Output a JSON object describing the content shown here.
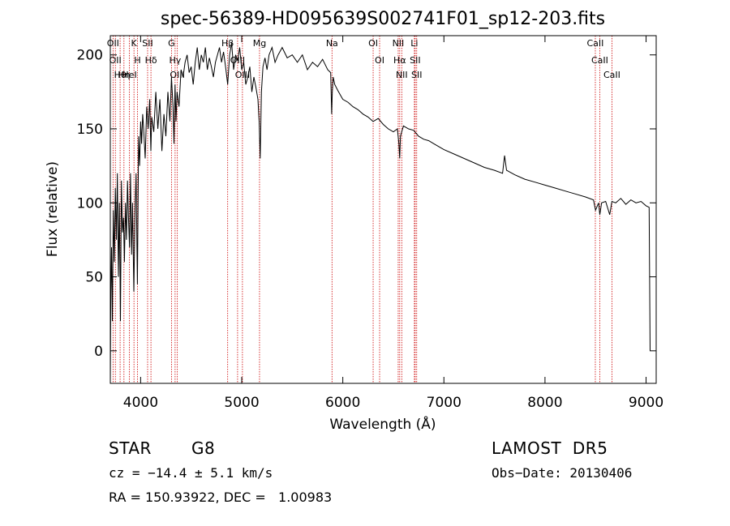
{
  "chart_data": {
    "type": "line",
    "title": "spec-56389-HD095639S002741F01_sp12-203.fits",
    "xlabel": "Wavelength (Å)",
    "ylabel": "Flux (relative)",
    "xlim": [
      3700,
      9100
    ],
    "ylim": [
      -22,
      213
    ],
    "xticks": [
      4000,
      5000,
      6000,
      7000,
      8000,
      9000
    ],
    "yticks": [
      0,
      50,
      100,
      150,
      200
    ],
    "grid": false,
    "line_color": "#000000",
    "marker_color": "#cc0000",
    "series": [
      {
        "x": [
          3700,
          3705,
          3712,
          3720,
          3730,
          3740,
          3750,
          3760,
          3770,
          3780,
          3790,
          3800,
          3810,
          3820,
          3830,
          3840,
          3850,
          3860,
          3870,
          3880,
          3890,
          3900,
          3910,
          3920,
          3933,
          3945,
          3955,
          3968,
          3980,
          3990,
          4000,
          4010,
          4020,
          4030,
          4045,
          4060,
          4075,
          4090,
          4101,
          4110,
          4130,
          4150,
          4170,
          4190,
          4210,
          4230,
          4250,
          4270,
          4290,
          4305,
          4320,
          4330,
          4340,
          4350,
          4360,
          4380,
          4400,
          4420,
          4440,
          4460,
          4480,
          4500,
          4520,
          4540,
          4560,
          4580,
          4600,
          4620,
          4640,
          4660,
          4680,
          4700,
          4720,
          4740,
          4760,
          4780,
          4800,
          4820,
          4840,
          4861,
          4880,
          4900,
          4920,
          4940,
          4960,
          4980,
          5000,
          5020,
          5040,
          5060,
          5080,
          5100,
          5120,
          5140,
          5160,
          5172,
          5183,
          5195,
          5210,
          5230,
          5250,
          5270,
          5300,
          5330,
          5360,
          5400,
          5450,
          5500,
          5550,
          5600,
          5650,
          5700,
          5750,
          5800,
          5850,
          5880,
          5890,
          5896,
          5905,
          5920,
          5950,
          6000,
          6050,
          6100,
          6150,
          6200,
          6250,
          6300,
          6350,
          6400,
          6450,
          6500,
          6540,
          6555,
          6563,
          6570,
          6600,
          6650,
          6700,
          6750,
          6800,
          6850,
          6900,
          6950,
          7000,
          7100,
          7200,
          7300,
          7400,
          7500,
          7580,
          7600,
          7620,
          7700,
          7800,
          7900,
          8000,
          8100,
          8200,
          8300,
          8400,
          8480,
          8500,
          8530,
          8542,
          8560,
          8600,
          8640,
          8662,
          8700,
          8750,
          8800,
          8850,
          8900,
          8950,
          9000,
          9030,
          9040
        ],
        "y": [
          -20,
          40,
          70,
          20,
          95,
          60,
          110,
          75,
          120,
          50,
          100,
          20,
          115,
          80,
          90,
          60,
          100,
          75,
          115,
          90,
          70,
          120,
          65,
          100,
          40,
          95,
          120,
          45,
          145,
          125,
          155,
          140,
          160,
          150,
          130,
          165,
          150,
          170,
          135,
          158,
          148,
          175,
          150,
          170,
          135,
          160,
          145,
          175,
          155,
          185,
          165,
          140,
          180,
          155,
          175,
          165,
          190,
          185,
          195,
          200,
          188,
          192,
          180,
          195,
          205,
          190,
          200,
          195,
          205,
          190,
          198,
          192,
          185,
          195,
          200,
          205,
          195,
          202,
          192,
          180,
          200,
          208,
          190,
          200,
          196,
          205,
          190,
          195,
          180,
          185,
          192,
          175,
          185,
          178,
          170,
          155,
          130,
          175,
          192,
          198,
          190,
          200,
          205,
          195,
          200,
          205,
          198,
          200,
          195,
          200,
          190,
          195,
          192,
          197,
          190,
          188,
          160,
          175,
          185,
          180,
          176,
          170,
          168,
          165,
          163,
          160,
          158,
          155,
          157,
          153,
          150,
          148,
          150,
          140,
          130,
          145,
          152,
          150,
          149,
          145,
          143,
          142,
          140,
          138,
          136,
          133,
          130,
          127,
          124,
          122,
          120,
          132,
          122,
          119,
          116,
          114,
          112,
          110,
          108,
          106,
          104,
          102,
          95,
          100,
          92,
          100,
          101,
          92,
          101,
          100,
          103,
          99,
          102,
          100,
          101,
          98,
          97,
          0
        ]
      }
    ],
    "line_markers": [
      {
        "wl": 3727,
        "label": "OII"
      },
      {
        "wl": 3750,
        "label": "OII"
      },
      {
        "wl": 3797,
        "label": "Hθ"
      },
      {
        "wl": 3835,
        "label": "Hη"
      },
      {
        "wl": 3889,
        "label": "HeI"
      },
      {
        "wl": 3934,
        "label": "K"
      },
      {
        "wl": 3969,
        "label": "H"
      },
      {
        "wl": 4069,
        "label": "SII"
      },
      {
        "wl": 4102,
        "label": "Hδ"
      },
      {
        "wl": 4305,
        "label": "G"
      },
      {
        "wl": 4341,
        "label": "Hγ"
      },
      {
        "wl": 4363,
        "label": "OIII"
      },
      {
        "wl": 4861,
        "label": "Hβ"
      },
      {
        "wl": 4959,
        "label": "OIII"
      },
      {
        "wl": 5007,
        "label": "OIII"
      },
      {
        "wl": 5176,
        "label": "Mg"
      },
      {
        "wl": 5893,
        "label": "Na"
      },
      {
        "wl": 6300,
        "label": "OI"
      },
      {
        "wl": 6364,
        "label": "OI"
      },
      {
        "wl": 6548,
        "label": "NII"
      },
      {
        "wl": 6563,
        "label": "Hα"
      },
      {
        "wl": 6583,
        "label": "NII"
      },
      {
        "wl": 6708,
        "label": "Li"
      },
      {
        "wl": 6716,
        "label": "SII"
      },
      {
        "wl": 6731,
        "label": "SII"
      },
      {
        "wl": 8498,
        "label": "CaII"
      },
      {
        "wl": 8542,
        "label": "CaII"
      },
      {
        "wl": 8662,
        "label": "CaII"
      }
    ]
  },
  "info": {
    "object_class": "STAR",
    "subclass": "G8",
    "survey": "LAMOST  DR5",
    "cz": "cz = −14.4 ± 5.1 km/s",
    "obs_date": "Obs−Date: 20130406",
    "coords": "RA = 150.93922, DEC =   1.00983"
  }
}
